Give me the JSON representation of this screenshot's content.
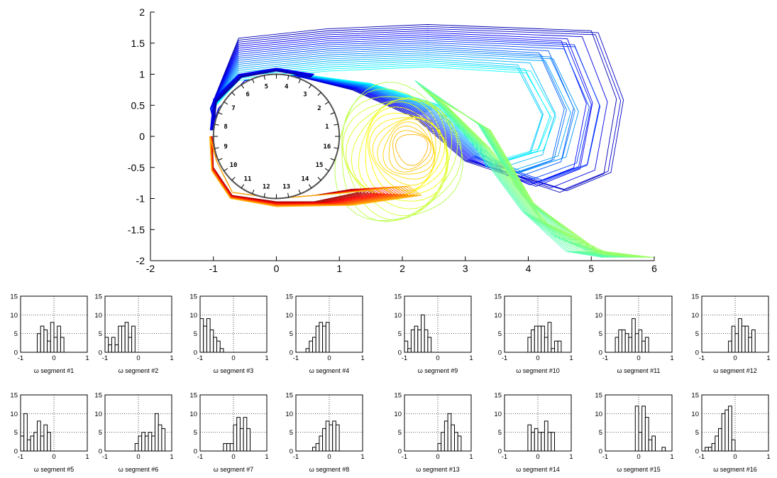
{
  "chart_data": [
    {
      "type": "contour",
      "xlim": [
        -2,
        6
      ],
      "ylim": [
        -2,
        2
      ],
      "xticks": [
        "-2",
        "-1",
        "0",
        "1",
        "2",
        "3",
        "4",
        "5",
        "6"
      ],
      "yticks": [
        "2",
        "1.5",
        "1",
        "0.5",
        "0",
        "-0.5",
        "-1",
        "-1.5",
        "-2"
      ],
      "cylinder": {
        "center": [
          0,
          0
        ],
        "radius": 1
      },
      "segment_labels": [
        "1",
        "2",
        "3",
        "4",
        "5",
        "6",
        "7",
        "8",
        "9",
        "10",
        "11",
        "12",
        "13",
        "14",
        "15",
        "16"
      ],
      "colormap": "jet",
      "grid": false
    },
    {
      "type": "bar",
      "title_prefix": "ω segment #",
      "xlim": [
        -1,
        1
      ],
      "ylim": [
        0,
        15
      ],
      "xticks": [
        "-1",
        "0",
        "1"
      ],
      "yticks": [
        "15",
        "10",
        "5",
        "0"
      ],
      "grid": true,
      "bin_width": 0.1,
      "histograms": [
        {
          "label": "ω segment #1",
          "bin_start": -0.6,
          "values": [
            0,
            5,
            7,
            6,
            3,
            8,
            4,
            7,
            4
          ]
        },
        {
          "label": "ω segment #2",
          "bin_start": -1.0,
          "values": [
            4,
            2,
            4,
            2,
            7,
            7,
            8,
            4,
            7
          ]
        },
        {
          "label": "ω segment #3",
          "bin_start": -1.0,
          "values": [
            9,
            7,
            9,
            6,
            4,
            3,
            1
          ]
        },
        {
          "label": "ω segment #4",
          "bin_start": -0.7,
          "values": [
            1,
            3,
            4,
            7,
            8,
            7,
            8
          ]
        },
        {
          "label": "ω segment #5",
          "bin_start": -1.0,
          "values": [
            4,
            10,
            3,
            4,
            5,
            8,
            4,
            7,
            5
          ]
        },
        {
          "label": "ω segment #6",
          "bin_start": -0.1,
          "values": [
            2,
            4,
            5,
            4,
            5,
            4,
            10,
            7,
            6
          ]
        },
        {
          "label": "ω segment #7",
          "bin_start": -0.3,
          "values": [
            2,
            2,
            2,
            7,
            9,
            6,
            9,
            6
          ]
        },
        {
          "label": "ω segment #8",
          "bin_start": -0.5,
          "values": [
            1,
            2,
            4,
            6,
            8,
            7,
            8,
            7
          ]
        },
        {
          "label": "ω segment #9",
          "bin_start": -1.0,
          "values": [
            3,
            1,
            6,
            7,
            6,
            10,
            6,
            4
          ]
        },
        {
          "label": "ω segment #10",
          "bin_start": -0.3,
          "values": [
            4,
            6,
            7,
            7,
            7,
            4,
            8,
            1,
            3,
            3
          ]
        },
        {
          "label": "ω segment #11",
          "bin_start": -0.7,
          "values": [
            4,
            6,
            6,
            5,
            4,
            9,
            5,
            6,
            3,
            4
          ]
        },
        {
          "label": "ω segment #12",
          "bin_start": -0.2,
          "values": [
            3,
            7,
            5,
            9,
            7,
            7,
            4,
            6
          ]
        },
        {
          "label": "ω segment #13",
          "bin_start": 0.0,
          "values": [
            2,
            5,
            8,
            10,
            7,
            5,
            4
          ]
        },
        {
          "label": "ω segment #14",
          "bin_start": -0.3,
          "values": [
            7,
            5,
            6,
            5,
            5,
            8,
            5,
            5
          ]
        },
        {
          "label": "ω segment #15",
          "bin_start": -0.1,
          "values": [
            12,
            5,
            12,
            9,
            3,
            4,
            0,
            0,
            1
          ]
        },
        {
          "label": "ω segment #16",
          "bin_start": -0.9,
          "values": [
            1,
            1,
            2,
            4,
            6,
            10,
            11,
            12,
            3
          ]
        }
      ]
    }
  ]
}
